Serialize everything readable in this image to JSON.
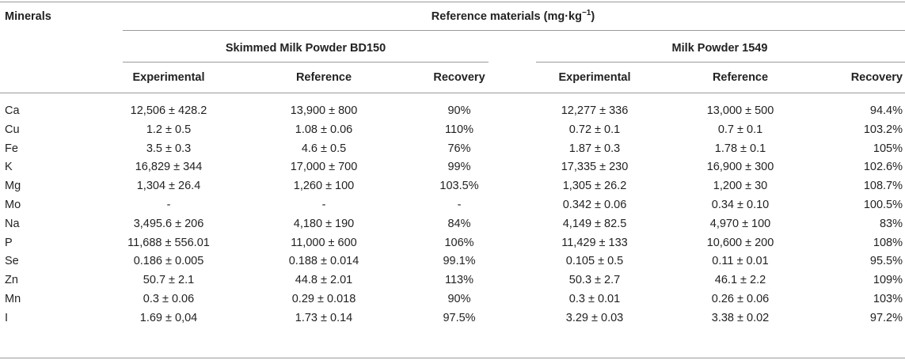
{
  "table": {
    "stub_header": "Minerals",
    "spanning_header": "Reference materials (mg·kg",
    "spanning_header_sup": "−1",
    "spanning_header_close": ")",
    "groups": [
      {
        "title": "Skimmed Milk Powder BD150"
      },
      {
        "title": "Milk Powder 1549"
      }
    ],
    "columns": [
      "Experimental",
      "Reference",
      "Recovery",
      "Experimental",
      "Reference",
      "Recovery"
    ],
    "rows": [
      {
        "mineral": "Ca",
        "cells": [
          "12,506 ± 428.2",
          "13,900 ± 800",
          "90%",
          "12,277 ± 336",
          "13,000 ± 500",
          "94.4%"
        ]
      },
      {
        "mineral": "Cu",
        "cells": [
          "1.2 ± 0.5",
          "1.08 ± 0.06",
          "110%",
          "0.72 ± 0.1",
          "0.7 ± 0.1",
          "103.2%"
        ]
      },
      {
        "mineral": "Fe",
        "cells": [
          "3.5 ± 0.3",
          "4.6 ± 0.5",
          "76%",
          "1.87 ± 0.3",
          "1.78 ± 0.1",
          "105%"
        ]
      },
      {
        "mineral": "K",
        "cells": [
          "16,829 ± 344",
          "17,000 ± 700",
          "99%",
          "17,335 ± 230",
          "16,900 ± 300",
          "102.6%"
        ]
      },
      {
        "mineral": "Mg",
        "cells": [
          "1,304 ± 26.4",
          "1,260 ± 100",
          "103.5%",
          "1,305 ± 26.2",
          "1,200 ± 30",
          "108.7%"
        ]
      },
      {
        "mineral": "Mo",
        "cells": [
          "-",
          "-",
          "-",
          "0.342 ± 0.06",
          "0.34 ± 0.10",
          "100.5%"
        ]
      },
      {
        "mineral": "Na",
        "cells": [
          "3,495.6 ± 206",
          "4,180 ± 190",
          "84%",
          "4,149 ± 82.5",
          "4,970 ± 100",
          "83%"
        ]
      },
      {
        "mineral": "P",
        "cells": [
          "11,688 ± 556.01",
          "11,000 ± 600",
          "106%",
          "11,429 ± 133",
          "10,600 ± 200",
          "108%"
        ]
      },
      {
        "mineral": "Se",
        "cells": [
          "0.186 ± 0.005",
          "0.188 ± 0.014",
          "99.1%",
          "0.105 ± 0.5",
          "0.11 ± 0.01",
          "95.5%"
        ]
      },
      {
        "mineral": "Zn",
        "cells": [
          "50.7 ± 2.1",
          "44.8 ± 2.01",
          "113%",
          "50.3 ± 2.7",
          "46.1 ± 2.2",
          "109%"
        ]
      },
      {
        "mineral": "Mn",
        "cells": [
          "0.3 ± 0.06",
          "0.29 ± 0.018",
          "90%",
          "0.3 ± 0.01",
          "0.26 ± 0.06",
          "103%"
        ]
      },
      {
        "mineral": "I",
        "cells": [
          "1.69 ± 0,04",
          "1.73 ± 0.14",
          "97.5%",
          "3.29 ± 0.03",
          "3.38 ± 0.02",
          "97.2%"
        ]
      }
    ]
  }
}
